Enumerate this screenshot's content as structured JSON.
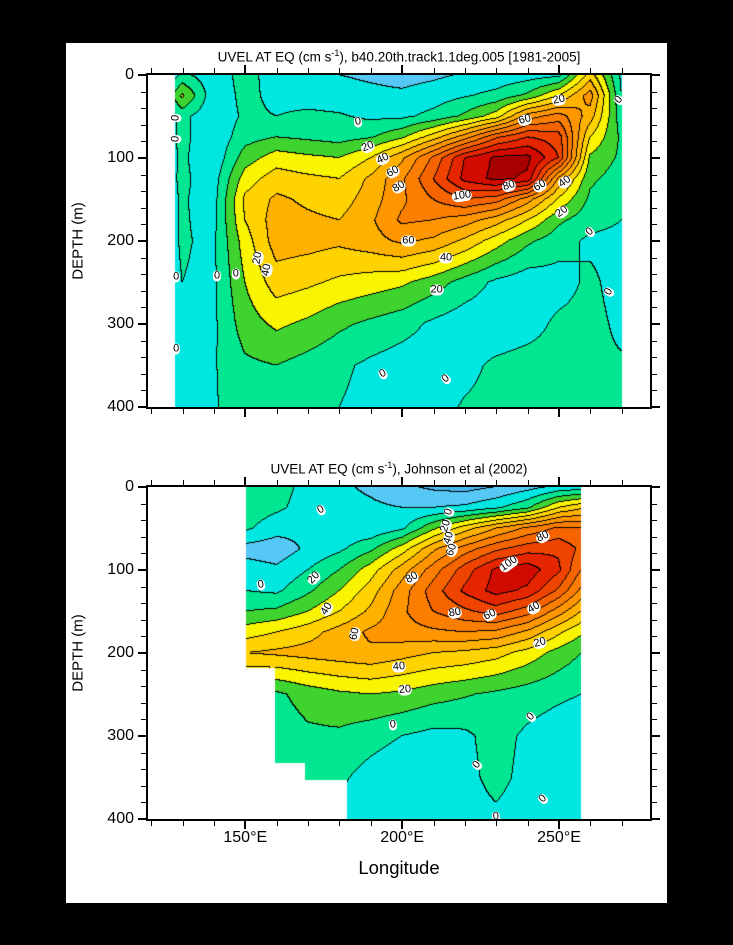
{
  "figure": {
    "background_color": "#000000",
    "plot_background_color": "#ffffff"
  },
  "chart_data": [
    {
      "type": "contour",
      "title": "UVEL AT EQ (cm s-1), b40.20th.track1.1deg.005 [1981-2005]",
      "title_parts": {
        "prefix": "UVEL AT EQ (cm s",
        "sup": "-1",
        "suffix": "), b40.20th.track1.1deg.005 [1981-2005]"
      },
      "ylabel": "DEPTH (m)",
      "xlabel": "",
      "units": "cm/s",
      "contour_interval": 10,
      "labeled_levels": [
        0,
        20,
        40,
        60,
        80,
        100
      ],
      "x_axis": {
        "min": 119,
        "max": 279,
        "major_ticks": [
          150,
          200,
          250
        ],
        "minor_step": 10,
        "minor_from": 120,
        "minor_to": 270,
        "tick_labels": [],
        "show_tick_labels": false
      },
      "y_axis": {
        "min": 0,
        "max": 400,
        "major_ticks": [
          0,
          100,
          200,
          300,
          400
        ],
        "minor_step": 20,
        "tick_labels": [
          "0",
          "100",
          "200",
          "300",
          "400"
        ]
      },
      "domain": {
        "lon_min": 127.5,
        "lon_max": 270,
        "depth_steps": []
      },
      "palette": [
        {
          "max": -20,
          "color": "#46b7f0"
        },
        {
          "max": -10,
          "color": "#55c8f5"
        },
        {
          "max": 0,
          "color": "#00e6e0"
        },
        {
          "max": 10,
          "color": "#00e691"
        },
        {
          "max": 20,
          "color": "#3ed32e"
        },
        {
          "max": 30,
          "color": "#f9f400"
        },
        {
          "max": 40,
          "color": "#ffd300"
        },
        {
          "max": 50,
          "color": "#ffb100"
        },
        {
          "max": 60,
          "color": "#ff9600"
        },
        {
          "max": 70,
          "color": "#fb7e00"
        },
        {
          "max": 80,
          "color": "#f66400"
        },
        {
          "max": 90,
          "color": "#ee4400"
        },
        {
          "max": 100,
          "color": "#e42500"
        },
        {
          "max": 110,
          "color": "#d10b00"
        },
        {
          "max": 999,
          "color": "#a80000"
        }
      ],
      "grid": {
        "lon": [
          120,
          130,
          140,
          150,
          160,
          170,
          180,
          190,
          200,
          210,
          220,
          230,
          240,
          250,
          260,
          270
        ],
        "depth": [
          0,
          25,
          50,
          75,
          100,
          125,
          150,
          175,
          200,
          250,
          300,
          350,
          400
        ],
        "values": [
          [
            -20,
            2,
            -6,
            4,
            -5,
            -8,
            -10,
            -12,
            -14,
            -12,
            -9,
            -7,
            -5,
            -3,
            35,
            -2
          ],
          [
            -18,
            22,
            -7,
            3,
            -3,
            -4,
            -5,
            -7,
            -8,
            -5,
            -1,
            3,
            12,
            30,
            55,
            0
          ],
          [
            -16,
            3,
            -8,
            2,
            0,
            2,
            1,
            -2,
            -2,
            3,
            12,
            25,
            55,
            65,
            45,
            4
          ],
          [
            -14,
            3,
            -8,
            6,
            10,
            8,
            6,
            9,
            18,
            35,
            55,
            78,
            90,
            85,
            30,
            8
          ],
          [
            -12,
            2,
            -8,
            15,
            25,
            22,
            20,
            30,
            48,
            72,
            100,
            112,
            113,
            90,
            18,
            8
          ],
          [
            -10,
            2,
            -5,
            25,
            35,
            32,
            30,
            42,
            58,
            80,
            103,
            113,
            108,
            48,
            12,
            5
          ],
          [
            -8,
            1,
            -4,
            32,
            42,
            38,
            35,
            45,
            58,
            70,
            80,
            75,
            55,
            28,
            8,
            2
          ],
          [
            -8,
            1,
            -3,
            30,
            45,
            42,
            40,
            48,
            62,
            60,
            55,
            45,
            30,
            12,
            4,
            0
          ],
          [
            -8,
            1,
            -2,
            25,
            45,
            44,
            42,
            46,
            52,
            48,
            38,
            25,
            12,
            4,
            -2,
            -3
          ],
          [
            -8,
            0,
            -2,
            20,
            35,
            32,
            28,
            25,
            22,
            15,
            6,
            -2,
            -6,
            -4,
            2,
            -4
          ],
          [
            -6,
            -1,
            -2,
            15,
            22,
            18,
            12,
            8,
            4,
            -2,
            -6,
            -7,
            -4,
            2,
            3,
            -2
          ],
          [
            -5,
            -1,
            -1,
            8,
            10,
            6,
            2,
            -2,
            -5,
            -6,
            -3,
            2,
            4,
            4,
            2,
            1
          ],
          [
            -5,
            -1,
            -1,
            5,
            6,
            3,
            0,
            -3,
            -6,
            -4,
            1,
            3,
            4,
            3,
            2,
            1
          ]
        ]
      },
      "contour_labels": [
        {
          "v": "0",
          "lon": 128,
          "depth": 52,
          "rot": -85
        },
        {
          "v": "0",
          "lon": 128,
          "depth": 77,
          "rot": -85
        },
        {
          "v": "0",
          "lon": 186,
          "depth": 57,
          "rot": -8
        },
        {
          "v": "20",
          "lon": 189,
          "depth": 87,
          "rot": -22
        },
        {
          "v": "40",
          "lon": 194,
          "depth": 101,
          "rot": -25
        },
        {
          "v": "60",
          "lon": 197,
          "depth": 117,
          "rot": -28
        },
        {
          "v": "80",
          "lon": 199,
          "depth": 135,
          "rot": -32
        },
        {
          "v": "100",
          "lon": 219,
          "depth": 146,
          "rot": -8
        },
        {
          "v": "80",
          "lon": 234,
          "depth": 134,
          "rot": -18
        },
        {
          "v": "60",
          "lon": 244,
          "depth": 134,
          "rot": -30
        },
        {
          "v": "40",
          "lon": 252,
          "depth": 129,
          "rot": -36
        },
        {
          "v": "60",
          "lon": 239,
          "depth": 54,
          "rot": -15
        },
        {
          "v": "20",
          "lon": 250,
          "depth": 30,
          "rot": -12
        },
        {
          "v": "20",
          "lon": 251,
          "depth": 165,
          "rot": -36
        },
        {
          "v": "0",
          "lon": 260,
          "depth": 189,
          "rot": -42
        },
        {
          "v": "60",
          "lon": 202,
          "depth": 200,
          "rot": 0
        },
        {
          "v": "40",
          "lon": 214,
          "depth": 220,
          "rot": 0
        },
        {
          "v": "20",
          "lon": 211,
          "depth": 259,
          "rot": 0
        },
        {
          "v": "20",
          "lon": 154,
          "depth": 220,
          "rot": -80
        },
        {
          "v": "40",
          "lon": 157,
          "depth": 235,
          "rot": -80
        },
        {
          "v": "0",
          "lon": 128,
          "depth": 243,
          "rot": 0
        },
        {
          "v": "0",
          "lon": 141,
          "depth": 242,
          "rot": 0
        },
        {
          "v": "0",
          "lon": 147,
          "depth": 240,
          "rot": 0
        },
        {
          "v": "0",
          "lon": 128,
          "depth": 330,
          "rot": 0
        },
        {
          "v": "0",
          "lon": 194,
          "depth": 360,
          "rot": -28
        },
        {
          "v": "0",
          "lon": 214,
          "depth": 366,
          "rot": -40
        },
        {
          "v": "0",
          "lon": 266,
          "depth": 262,
          "rot": -60
        },
        {
          "v": "0",
          "lon": 269,
          "depth": 30,
          "rot": -50
        }
      ]
    },
    {
      "type": "contour",
      "title": "UVEL AT EQ (cm s-1), Johnson et al (2002)",
      "title_parts": {
        "prefix": "UVEL AT EQ (cm s",
        "sup": "-1",
        "suffix": "), Johnson et al (2002)"
      },
      "ylabel": "DEPTH (m)",
      "xlabel": "Longitude",
      "units": "cm/s",
      "contour_interval": 10,
      "labeled_levels": [
        0,
        20,
        40,
        60,
        80,
        100
      ],
      "x_axis": {
        "min": 119,
        "max": 279,
        "major_ticks": [
          150,
          200,
          250
        ],
        "minor_step": 10,
        "minor_from": 120,
        "minor_to": 270,
        "tick_labels": [
          "150°E",
          "200°E",
          "250°E"
        ],
        "show_tick_labels": true
      },
      "y_axis": {
        "min": 0,
        "max": 400,
        "major_ticks": [
          0,
          100,
          200,
          300,
          400
        ],
        "minor_step": 20,
        "tick_labels": [
          "0",
          "100",
          "200",
          "300",
          "400"
        ]
      },
      "domain": {
        "lon_min": 150.2,
        "lon_max": 257,
        "depth_steps": [
          {
            "from": 218,
            "lon_min": 159.6
          },
          {
            "from": 332,
            "lon_min": 169.0
          },
          {
            "from": 353,
            "lon_min": 182.4
          }
        ]
      },
      "palette": [
        {
          "max": -20,
          "color": "#46b7f0"
        },
        {
          "max": -10,
          "color": "#55c8f5"
        },
        {
          "max": 0,
          "color": "#00e6e0"
        },
        {
          "max": 10,
          "color": "#00e691"
        },
        {
          "max": 20,
          "color": "#3ed32e"
        },
        {
          "max": 30,
          "color": "#f9f400"
        },
        {
          "max": 40,
          "color": "#ffd300"
        },
        {
          "max": 50,
          "color": "#ffb100"
        },
        {
          "max": 60,
          "color": "#ff9600"
        },
        {
          "max": 70,
          "color": "#fb7e00"
        },
        {
          "max": 80,
          "color": "#f66400"
        },
        {
          "max": 90,
          "color": "#ee4400"
        },
        {
          "max": 100,
          "color": "#e42500"
        },
        {
          "max": 110,
          "color": "#d10b00"
        },
        {
          "max": 999,
          "color": "#a80000"
        }
      ],
      "grid": {
        "lon": [
          150,
          160,
          170,
          180,
          190,
          200,
          210,
          220,
          230,
          240,
          250,
          257
        ],
        "depth": [
          0,
          25,
          50,
          75,
          100,
          125,
          150,
          175,
          200,
          250,
          300,
          350,
          400
        ],
        "values": [
          [
            8,
            4,
            -3,
            -8,
            -12,
            -18,
            -22,
            -24,
            -20,
            -14,
            -8,
            -6
          ],
          [
            6,
            2,
            -4,
            -6,
            -8,
            -10,
            -10,
            -8,
            -2,
            8,
            30,
            38
          ],
          [
            2,
            -6,
            -8,
            -7,
            -8,
            -2,
            18,
            35,
            50,
            62,
            72,
            70
          ],
          [
            -14,
            -16,
            -8,
            -2,
            8,
            25,
            48,
            65,
            78,
            86,
            88,
            78
          ],
          [
            -5,
            -8,
            0,
            10,
            25,
            45,
            65,
            85,
            102,
            106,
            92,
            70
          ],
          [
            0,
            -2,
            8,
            20,
            35,
            55,
            75,
            92,
            104,
            98,
            78,
            58
          ],
          [
            10,
            12,
            20,
            30,
            42,
            58,
            70,
            78,
            85,
            75,
            55,
            40
          ],
          [
            25,
            30,
            36,
            44,
            52,
            56,
            58,
            60,
            58,
            48,
            32,
            22
          ],
          [
            40,
            42,
            44,
            46,
            48,
            44,
            40,
            38,
            34,
            26,
            16,
            10
          ],
          [
            10,
            8,
            14,
            18,
            20,
            18,
            14,
            11,
            8,
            5,
            2,
            0
          ],
          [
            6,
            4,
            8,
            8,
            4,
            0,
            -3,
            -2,
            4,
            -2,
            -6,
            -8
          ],
          [
            5,
            3,
            5,
            2,
            -4,
            -8,
            -6,
            -3,
            3,
            -3,
            -5,
            -8
          ],
          [
            4,
            2,
            3,
            -2,
            -8,
            -10,
            -8,
            -4,
            -2,
            -5,
            -8,
            -10
          ]
        ]
      },
      "contour_labels": [
        {
          "v": "0",
          "lon": 174,
          "depth": 28,
          "rot": -30
        },
        {
          "v": "0",
          "lon": 215,
          "depth": 30,
          "rot": -70
        },
        {
          "v": "20",
          "lon": 214,
          "depth": 47,
          "rot": -72
        },
        {
          "v": "40",
          "lon": 215,
          "depth": 61,
          "rot": -72
        },
        {
          "v": "60",
          "lon": 216,
          "depth": 76,
          "rot": -70
        },
        {
          "v": "80",
          "lon": 245,
          "depth": 60,
          "rot": -25
        },
        {
          "v": "100",
          "lon": 234,
          "depth": 93,
          "rot": -35
        },
        {
          "v": "80",
          "lon": 203,
          "depth": 110,
          "rot": -30
        },
        {
          "v": "80",
          "lon": 217,
          "depth": 152,
          "rot": -10
        },
        {
          "v": "60",
          "lon": 228,
          "depth": 154,
          "rot": -25
        },
        {
          "v": "40",
          "lon": 242,
          "depth": 146,
          "rot": -30
        },
        {
          "v": "20",
          "lon": 244,
          "depth": 188,
          "rot": -15
        },
        {
          "v": "60",
          "lon": 185,
          "depth": 177,
          "rot": -78
        },
        {
          "v": "40",
          "lon": 176,
          "depth": 147,
          "rot": -58
        },
        {
          "v": "20",
          "lon": 172,
          "depth": 110,
          "rot": -48
        },
        {
          "v": "0",
          "lon": 155,
          "depth": 118,
          "rot": -12
        },
        {
          "v": "40",
          "lon": 199,
          "depth": 217,
          "rot": -5
        },
        {
          "v": "20",
          "lon": 201,
          "depth": 245,
          "rot": -5
        },
        {
          "v": "0",
          "lon": 197,
          "depth": 287,
          "rot": -5
        },
        {
          "v": "0",
          "lon": 241,
          "depth": 277,
          "rot": -45
        },
        {
          "v": "0",
          "lon": 224,
          "depth": 335,
          "rot": -52
        },
        {
          "v": "0",
          "lon": 245,
          "depth": 376,
          "rot": -45
        },
        {
          "v": "0",
          "lon": 230,
          "depth": 398,
          "rot": -5
        }
      ]
    }
  ]
}
